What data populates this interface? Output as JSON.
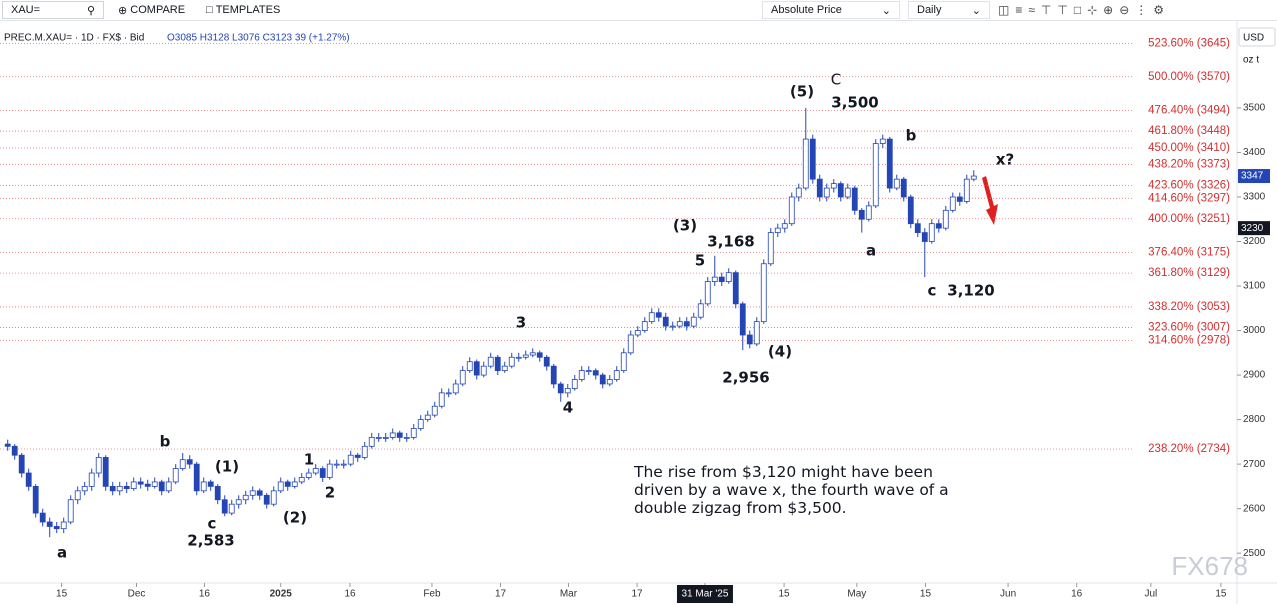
{
  "toolbar": {
    "symbol": "XAU=",
    "compare": "COMPARE",
    "templates": "TEMPLATES",
    "price_mode": "Absolute Price",
    "interval": "Daily"
  },
  "legend": {
    "symbol": "PREC.M.XAU= · 1D · FX$ · Bid",
    "ohlc": "O3085 H3128 L3076 C3123 39 (+1.27%)"
  },
  "watermark": "FX678",
  "chart_data": {
    "type": "candlestick",
    "currency": "USD",
    "unit": "oz t",
    "up_color": "#ffffff",
    "down_color": "#2446b5",
    "edge_color": "#2446b5",
    "ylim": [
      2433,
      3675
    ],
    "yticks": [
      2500,
      2600,
      2700,
      2800,
      2900,
      3000,
      3100,
      3200,
      3300,
      3400,
      3500
    ],
    "xlim": [
      -1.1,
      175.6
    ],
    "xticks": [
      {
        "value": 7.7,
        "label": "15"
      },
      {
        "value": 18.4,
        "label": "Dec"
      },
      {
        "value": 28.1,
        "label": "16"
      },
      {
        "value": 39,
        "label": "2025"
      },
      {
        "value": 48.9,
        "label": "16"
      },
      {
        "value": 60.6,
        "label": "Feb"
      },
      {
        "value": 70.4,
        "label": "17"
      },
      {
        "value": 80.1,
        "label": "Mar"
      },
      {
        "value": 89.9,
        "label": "17"
      },
      {
        "value": 99.6,
        "label": "31 Mar '25"
      },
      {
        "value": 110.9,
        "label": "15"
      },
      {
        "value": 121.3,
        "label": "May"
      },
      {
        "value": 131.1,
        "label": "15"
      },
      {
        "value": 142.9,
        "label": "Jun"
      },
      {
        "value": 152.7,
        "label": "16"
      },
      {
        "value": 163.3,
        "label": "Jul"
      },
      {
        "value": 173.3,
        "label": "15"
      }
    ],
    "last_price": 3347,
    "cursor_price": 3230,
    "fib_levels": [
      {
        "value": 3645,
        "label": "523.60% (3645)"
      },
      {
        "value": 3570,
        "label": "500.00% (3570)"
      },
      {
        "value": 3494,
        "label": "476.40% (3494)"
      },
      {
        "value": 3448,
        "label": "461.80% (3448)"
      },
      {
        "value": 3410,
        "label": "450.00% (3410)"
      },
      {
        "value": 3373,
        "label": "438.20% (3373)"
      },
      {
        "value": 3326,
        "label": "423.60% (3326)"
      },
      {
        "value": 3297,
        "label": "414.60% (3297)"
      },
      {
        "value": 3251,
        "label": "400.00% (3251)"
      },
      {
        "value": 3175,
        "label": "376.40% (3175)"
      },
      {
        "value": 3129,
        "label": "361.80% (3129)"
      },
      {
        "value": 3053,
        "label": "338.20% (3053)"
      },
      {
        "value": 3007,
        "label": "323.60% (3007)"
      },
      {
        "value": 2978,
        "label": "314.60% (2978)"
      },
      {
        "value": 2734,
        "label": "238.20% (2734)"
      }
    ],
    "annotations": [
      "a",
      "b",
      "(1)",
      "c",
      "2,583",
      "(2)",
      "1",
      "2",
      "3",
      "4",
      "(3)",
      "5",
      "3,168",
      "(4)",
      "2,956",
      "(5)",
      "C",
      "3,500",
      "a",
      "b",
      "c",
      "3,120",
      "x?"
    ],
    "comment": "The rise from $3,120 might have been driven by a wave x, the fourth wave of a double zigzag from $3,500.",
    "ohlc": [
      [
        2745,
        2755,
        2730,
        2740
      ],
      [
        2740,
        2745,
        2710,
        2720
      ],
      [
        2720,
        2725,
        2670,
        2680
      ],
      [
        2680,
        2690,
        2640,
        2650
      ],
      [
        2650,
        2655,
        2580,
        2590
      ],
      [
        2590,
        2600,
        2560,
        2570
      ],
      [
        2570,
        2580,
        2536,
        2560
      ],
      [
        2560,
        2570,
        2545,
        2555
      ],
      [
        2555,
        2580,
        2545,
        2570
      ],
      [
        2570,
        2630,
        2565,
        2620
      ],
      [
        2620,
        2650,
        2610,
        2640
      ],
      [
        2640,
        2660,
        2630,
        2650
      ],
      [
        2650,
        2690,
        2640,
        2680
      ],
      [
        2680,
        2725,
        2670,
        2715
      ],
      [
        2715,
        2720,
        2640,
        2650
      ],
      [
        2650,
        2660,
        2630,
        2640
      ],
      [
        2640,
        2660,
        2630,
        2650
      ],
      [
        2650,
        2660,
        2635,
        2645
      ],
      [
        2645,
        2670,
        2640,
        2660
      ],
      [
        2660,
        2670,
        2645,
        2655
      ],
      [
        2655,
        2665,
        2640,
        2650
      ],
      [
        2650,
        2670,
        2645,
        2660
      ],
      [
        2660,
        2665,
        2630,
        2640
      ],
      [
        2640,
        2670,
        2635,
        2660
      ],
      [
        2660,
        2700,
        2655,
        2690
      ],
      [
        2690,
        2725,
        2685,
        2710
      ],
      [
        2710,
        2720,
        2690,
        2700
      ],
      [
        2700,
        2705,
        2630,
        2640
      ],
      [
        2640,
        2670,
        2635,
        2660
      ],
      [
        2660,
        2665,
        2640,
        2650
      ],
      [
        2650,
        2655,
        2610,
        2620
      ],
      [
        2620,
        2630,
        2583,
        2590
      ],
      [
        2590,
        2620,
        2585,
        2610
      ],
      [
        2610,
        2630,
        2600,
        2620
      ],
      [
        2620,
        2640,
        2610,
        2630
      ],
      [
        2630,
        2650,
        2620,
        2640
      ],
      [
        2640,
        2645,
        2620,
        2630
      ],
      [
        2630,
        2635,
        2600,
        2610
      ],
      [
        2610,
        2650,
        2605,
        2640
      ],
      [
        2640,
        2670,
        2635,
        2660
      ],
      [
        2660,
        2665,
        2640,
        2650
      ],
      [
        2650,
        2670,
        2645,
        2660
      ],
      [
        2660,
        2680,
        2655,
        2670
      ],
      [
        2670,
        2690,
        2665,
        2680
      ],
      [
        2680,
        2700,
        2675,
        2690
      ],
      [
        2690,
        2695,
        2660,
        2670
      ],
      [
        2670,
        2710,
        2665,
        2700
      ],
      [
        2700,
        2710,
        2690,
        2700
      ],
      [
        2700,
        2710,
        2690,
        2700
      ],
      [
        2700,
        2730,
        2695,
        2720
      ],
      [
        2720,
        2725,
        2705,
        2715
      ],
      [
        2715,
        2750,
        2710,
        2740
      ],
      [
        2740,
        2770,
        2735,
        2760
      ],
      [
        2760,
        2770,
        2750,
        2760
      ],
      [
        2760,
        2770,
        2750,
        2760
      ],
      [
        2760,
        2780,
        2755,
        2770
      ],
      [
        2770,
        2775,
        2750,
        2760
      ],
      [
        2760,
        2770,
        2750,
        2760
      ],
      [
        2760,
        2790,
        2755,
        2780
      ],
      [
        2780,
        2810,
        2775,
        2800
      ],
      [
        2800,
        2820,
        2795,
        2810
      ],
      [
        2810,
        2840,
        2805,
        2830
      ],
      [
        2830,
        2870,
        2825,
        2860
      ],
      [
        2860,
        2870,
        2850,
        2860
      ],
      [
        2860,
        2890,
        2855,
        2880
      ],
      [
        2880,
        2920,
        2875,
        2910
      ],
      [
        2910,
        2940,
        2905,
        2930
      ],
      [
        2930,
        2935,
        2890,
        2900
      ],
      [
        2900,
        2930,
        2895,
        2920
      ],
      [
        2920,
        2950,
        2915,
        2940
      ],
      [
        2940,
        2945,
        2900,
        2910
      ],
      [
        2910,
        2930,
        2905,
        2920
      ],
      [
        2920,
        2950,
        2915,
        2940
      ],
      [
        2940,
        2950,
        2930,
        2940
      ],
      [
        2940,
        2955,
        2935,
        2945
      ],
      [
        2945,
        2960,
        2940,
        2950
      ],
      [
        2950,
        2955,
        2930,
        2940
      ],
      [
        2940,
        2945,
        2910,
        2920
      ],
      [
        2920,
        2925,
        2870,
        2880
      ],
      [
        2880,
        2885,
        2840,
        2860
      ],
      [
        2860,
        2880,
        2850,
        2870
      ],
      [
        2870,
        2900,
        2865,
        2890
      ],
      [
        2890,
        2920,
        2885,
        2910
      ],
      [
        2910,
        2920,
        2900,
        2910
      ],
      [
        2910,
        2915,
        2890,
        2900
      ],
      [
        2900,
        2905,
        2870,
        2880
      ],
      [
        2880,
        2900,
        2875,
        2890
      ],
      [
        2890,
        2920,
        2885,
        2910
      ],
      [
        2910,
        2960,
        2905,
        2950
      ],
      [
        2950,
        3000,
        2945,
        2990
      ],
      [
        2990,
        3010,
        2985,
        3000
      ],
      [
        3000,
        3030,
        2995,
        3020
      ],
      [
        3020,
        3050,
        3015,
        3040
      ],
      [
        3040,
        3050,
        3020,
        3030
      ],
      [
        3030,
        3040,
        3000,
        3010
      ],
      [
        3010,
        3020,
        3000,
        3010
      ],
      [
        3010,
        3030,
        3005,
        3020
      ],
      [
        3020,
        3030,
        3000,
        3010
      ],
      [
        3010,
        3040,
        3005,
        3030
      ],
      [
        3030,
        3070,
        3025,
        3060
      ],
      [
        3060,
        3120,
        3055,
        3110
      ],
      [
        3110,
        3168,
        3100,
        3120
      ],
      [
        3120,
        3130,
        3100,
        3110
      ],
      [
        3110,
        3140,
        3105,
        3130
      ],
      [
        3130,
        3135,
        3050,
        3060
      ],
      [
        3060,
        3065,
        2956,
        2990
      ],
      [
        2990,
        3000,
        2960,
        2970
      ],
      [
        2970,
        3030,
        2965,
        3020
      ],
      [
        3020,
        3160,
        3015,
        3150
      ],
      [
        3150,
        3230,
        3145,
        3220
      ],
      [
        3220,
        3240,
        3210,
        3230
      ],
      [
        3230,
        3250,
        3220,
        3240
      ],
      [
        3240,
        3310,
        3235,
        3300
      ],
      [
        3300,
        3330,
        3290,
        3320
      ],
      [
        3320,
        3500,
        3315,
        3430
      ],
      [
        3430,
        3440,
        3330,
        3340
      ],
      [
        3340,
        3350,
        3290,
        3300
      ],
      [
        3300,
        3330,
        3290,
        3320
      ],
      [
        3320,
        3340,
        3310,
        3330
      ],
      [
        3330,
        3335,
        3290,
        3300
      ],
      [
        3300,
        3330,
        3295,
        3320
      ],
      [
        3320,
        3325,
        3260,
        3270
      ],
      [
        3270,
        3275,
        3220,
        3250
      ],
      [
        3250,
        3290,
        3245,
        3280
      ],
      [
        3280,
        3430,
        3275,
        3420
      ],
      [
        3420,
        3440,
        3410,
        3430
      ],
      [
        3430,
        3435,
        3310,
        3320
      ],
      [
        3320,
        3350,
        3315,
        3340
      ],
      [
        3340,
        3345,
        3290,
        3300
      ],
      [
        3300,
        3305,
        3230,
        3240
      ],
      [
        3240,
        3250,
        3210,
        3220
      ],
      [
        3220,
        3230,
        3120,
        3200
      ],
      [
        3200,
        3250,
        3195,
        3240
      ],
      [
        3240,
        3250,
        3220,
        3230
      ],
      [
        3230,
        3280,
        3225,
        3270
      ],
      [
        3270,
        3310,
        3265,
        3300
      ],
      [
        3300,
        3310,
        3280,
        3290
      ],
      [
        3290,
        3350,
        3285,
        3340
      ],
      [
        3340,
        3360,
        3335,
        3347
      ]
    ]
  }
}
